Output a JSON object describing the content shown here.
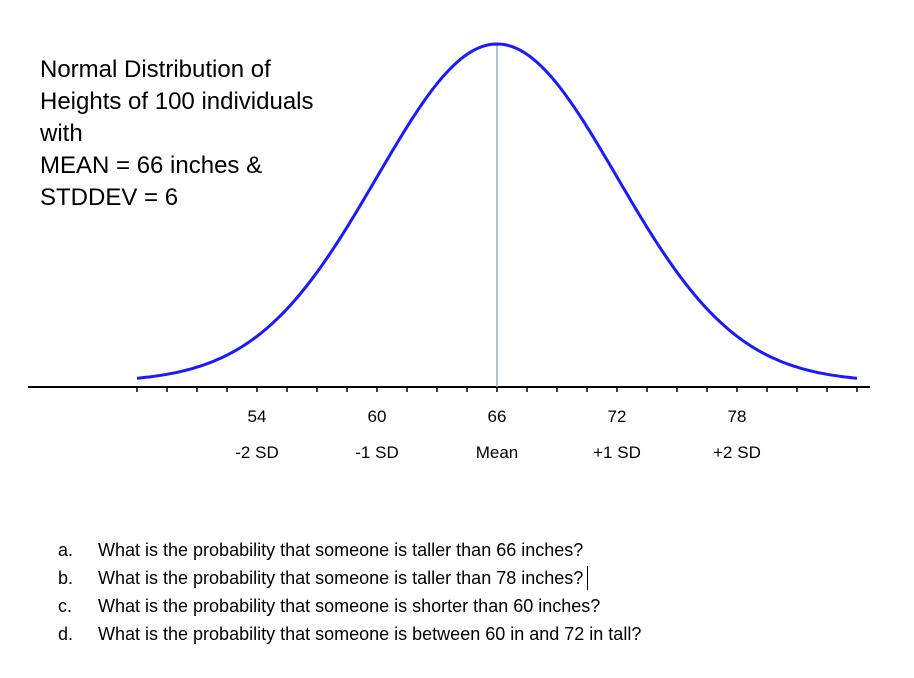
{
  "chart_data": {
    "type": "line",
    "title_lines": [
      "Normal Distribution of",
      "Heights of 100 individuals",
      "with",
      "MEAN = 66 inches &",
      "STDDEV = 6"
    ],
    "mean": 66,
    "stddev": 6,
    "xlim": [
      48,
      84
    ],
    "x_ticks": [
      {
        "value": 54,
        "label": "54",
        "sd_label": "-2 SD"
      },
      {
        "value": 60,
        "label": "60",
        "sd_label": "-1 SD"
      },
      {
        "value": 66,
        "label": "66",
        "sd_label": "Mean"
      },
      {
        "value": 72,
        "label": "72",
        "sd_label": "+1 SD"
      },
      {
        "value": 78,
        "label": "78",
        "sd_label": "+2 SD"
      }
    ],
    "curve_color": "#1a1aff",
    "axis_color": "#000000",
    "mean_line_color": "#9ab0c8"
  },
  "questions": [
    {
      "letter": "a.",
      "text": "What is the probability that someone is taller than 66 inches?"
    },
    {
      "letter": "b.",
      "text": "What is the probability that someone is taller than 78 inches?"
    },
    {
      "letter": "c.",
      "text": "What is the probability that someone is shorter than 60 inches?"
    },
    {
      "letter": "d.",
      "text": "What is the probability that someone is between 60 in and 72 in tall?"
    }
  ]
}
